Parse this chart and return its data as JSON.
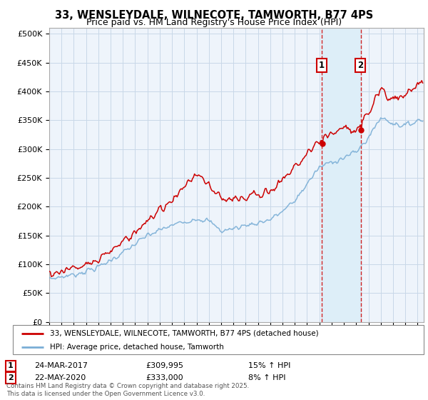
{
  "title1": "33, WENSLEYDALE, WILNECOTE, TAMWORTH, B77 4PS",
  "title2": "Price paid vs. HM Land Registry's House Price Index (HPI)",
  "legend1": "33, WENSLEYDALE, WILNECOTE, TAMWORTH, B77 4PS (detached house)",
  "legend2": "HPI: Average price, detached house, Tamworth",
  "annotation1_date": "24-MAR-2017",
  "annotation1_price": "£309,995",
  "annotation1_hpi": "15% ↑ HPI",
  "annotation1_year": 2017.22,
  "annotation2_date": "22-MAY-2020",
  "annotation2_price": "£333,000",
  "annotation2_hpi": "8% ↑ HPI",
  "annotation2_year": 2020.38,
  "footnote": "Contains HM Land Registry data © Crown copyright and database right 2025.\nThis data is licensed under the Open Government Licence v3.0.",
  "line1_color": "#cc0000",
  "line2_color": "#7aaed6",
  "shaded_color": "#ddeef8",
  "bg_color": "#eef4fb",
  "grid_color": "#c8d8e8",
  "sale1_price": 309995,
  "sale2_price": 333000,
  "ylim_max": 510000,
  "yticks": [
    0,
    50000,
    100000,
    150000,
    200000,
    250000,
    300000,
    350000,
    400000,
    450000,
    500000
  ],
  "ytick_labels": [
    "£0",
    "£50K",
    "£100K",
    "£150K",
    "£200K",
    "£250K",
    "£300K",
    "£350K",
    "£400K",
    "£450K",
    "£500K"
  ]
}
